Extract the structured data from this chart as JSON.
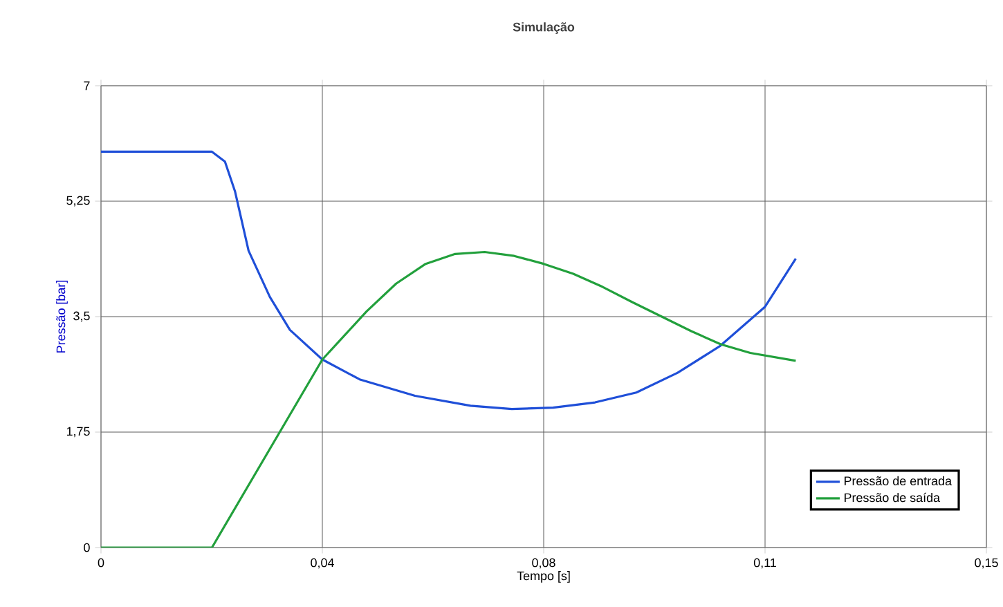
{
  "chart_data": {
    "type": "line",
    "title": "Simulação",
    "xlabel": "Tempo [s]",
    "ylabel": "Pressão [bar]",
    "xlim": [
      0,
      0.15
    ],
    "ylim": [
      0,
      7
    ],
    "xticks": [
      0,
      {
        "value": 0.0375,
        "label": "0,04"
      },
      {
        "value": 0.075,
        "label": "0,08"
      },
      {
        "value": 0.1125,
        "label": "0,11"
      },
      {
        "value": 0.15,
        "label": "0,15"
      }
    ],
    "yticks": [
      0,
      {
        "value": 1.75,
        "label": "1,75"
      },
      {
        "value": 3.5,
        "label": "3,5"
      },
      {
        "value": 5.25,
        "label": "5,25"
      },
      7
    ],
    "grid": true,
    "legend": "bottom right",
    "series": [
      {
        "name": "Pressão de entrada",
        "color": "#1f4fd8",
        "x": [
          0,
          0.0188,
          0.021,
          0.0227,
          0.025,
          0.0286,
          0.032,
          0.0375,
          0.0438,
          0.0532,
          0.0626,
          0.0696,
          0.0766,
          0.0837,
          0.0907,
          0.0977,
          0.1048,
          0.1125,
          0.1177
        ],
        "values": [
          6.0,
          6.0,
          5.85,
          5.4,
          4.5,
          3.8,
          3.3,
          2.85,
          2.55,
          2.3,
          2.15,
          2.1,
          2.12,
          2.2,
          2.35,
          2.65,
          3.05,
          3.65,
          4.38
        ]
      },
      {
        "name": "Pressão de saída",
        "color": "#22a03c",
        "x": [
          0,
          0.0188,
          0.0375,
          0.045,
          0.05,
          0.055,
          0.06,
          0.065,
          0.07,
          0.075,
          0.08,
          0.085,
          0.09,
          0.095,
          0.1,
          0.105,
          0.11,
          0.1177
        ],
        "values": [
          0,
          0,
          2.85,
          3.58,
          4.0,
          4.3,
          4.45,
          4.48,
          4.42,
          4.3,
          4.15,
          3.95,
          3.72,
          3.5,
          3.28,
          3.08,
          2.95,
          2.83
        ]
      }
    ]
  }
}
